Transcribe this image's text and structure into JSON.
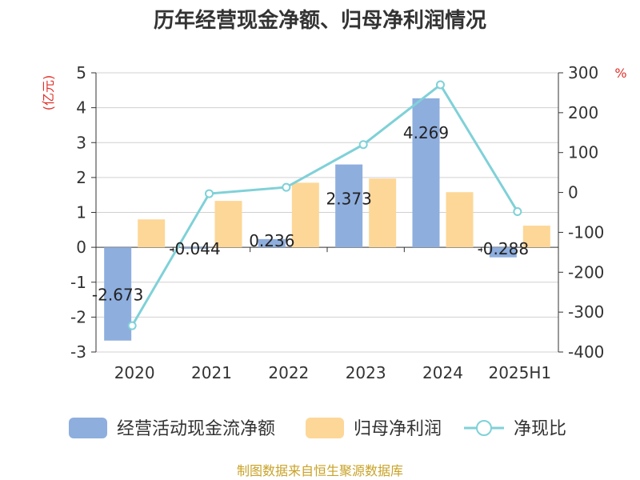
{
  "chart_data": {
    "type": "bar",
    "title": "历年经营现金净额、归母净利润情况",
    "left_axis_unit": "(亿元)",
    "right_axis_unit": "%",
    "categories": [
      "2020",
      "2021",
      "2022",
      "2023",
      "2024",
      "2025H1"
    ],
    "series": [
      {
        "name": "经营活动现金流净额",
        "type": "bar",
        "axis": "left",
        "color": "#8eaede",
        "values": [
          -2.673,
          -0.044,
          0.236,
          2.373,
          4.269,
          -0.288
        ],
        "labels": [
          "-2.673",
          "-0.044",
          "0.236",
          "2.373",
          "4.269",
          "-0.288"
        ]
      },
      {
        "name": "归母净利润",
        "type": "bar",
        "axis": "left",
        "color": "#fdd797",
        "values": [
          0.8,
          1.33,
          1.85,
          1.97,
          1.58,
          0.62
        ]
      },
      {
        "name": "净现比",
        "type": "line",
        "axis": "right",
        "color": "#7fd1d8",
        "values": [
          -334,
          -3,
          13,
          120,
          270,
          -48
        ]
      }
    ],
    "left_ylim": [
      -3,
      5
    ],
    "left_ticks": [
      "-3",
      "-2",
      "-1",
      "0",
      "1",
      "2",
      "3",
      "4",
      "5"
    ],
    "right_ylim": [
      -400,
      300
    ],
    "right_ticks": [
      "-400",
      "-300",
      "-200",
      "-100",
      "0",
      "100",
      "200",
      "300"
    ],
    "grid": true,
    "legend_position": "bottom",
    "source_note": "制图数据来自恒生聚源数据库"
  }
}
